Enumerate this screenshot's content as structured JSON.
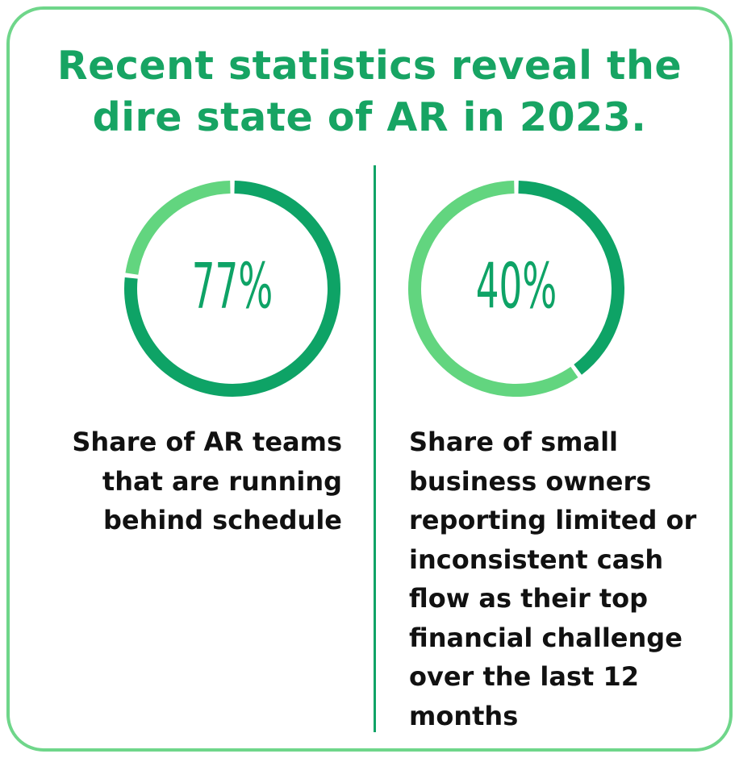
{
  "title": "Recent statistics reveal the dire state of AR in 2023.",
  "chart_data": [
    {
      "type": "donut",
      "values": [
        77
      ],
      "value_labels": [
        "77%"
      ],
      "colors": [
        "#0ea366",
        "#62d57f"
      ],
      "caption": "Share of AR teams that are running behind schedule"
    },
    {
      "type": "donut",
      "values": [
        40
      ],
      "value_labels": [
        "40%"
      ],
      "colors": [
        "#0ea366",
        "#62d57f"
      ],
      "caption": "Share of small business owners reporting limited or inconsistent cash flow as their top financial challenge over the last 12 months"
    }
  ]
}
